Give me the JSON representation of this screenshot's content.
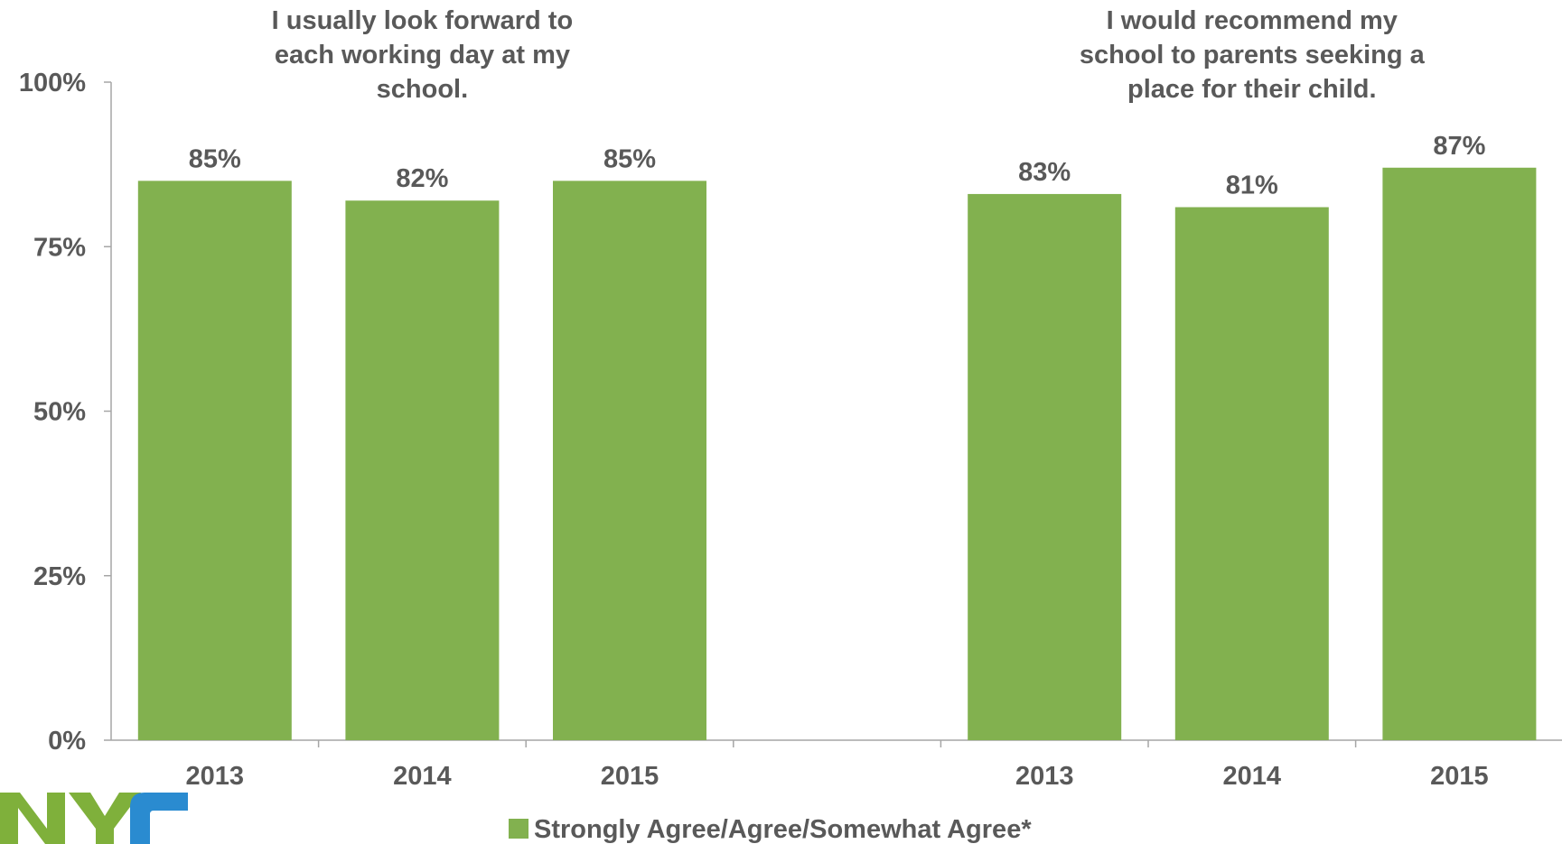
{
  "chart_data": {
    "type": "bar",
    "ylim": [
      0,
      100
    ],
    "yticks": [
      0,
      25,
      50,
      75,
      100
    ],
    "ytick_labels": [
      "0%",
      "25%",
      "50%",
      "75%",
      "100%"
    ],
    "groups": [
      {
        "title_lines": [
          "I usually look forward to",
          "each working day at my",
          "school."
        ],
        "categories": [
          "2013",
          "2014",
          "2015"
        ],
        "values": [
          85,
          82,
          85
        ],
        "data_labels": [
          "85%",
          "82%",
          "85%"
        ]
      },
      {
        "title_lines": [
          "I would recommend my",
          "school to parents seeking a",
          "place for their child."
        ],
        "categories": [
          "2013",
          "2014",
          "2015"
        ],
        "values": [
          83,
          81,
          87
        ],
        "data_labels": [
          "83%",
          "81%",
          "87%"
        ]
      }
    ],
    "series": [
      {
        "name": "Strongly Agree/Agree/Somewhat Agree*",
        "color": "#82b14f"
      }
    ],
    "legend_position": "bottom",
    "grid": false
  },
  "logo": {
    "text": "NYC",
    "colors": [
      "#7fb03b",
      "#2a8bd0"
    ]
  }
}
